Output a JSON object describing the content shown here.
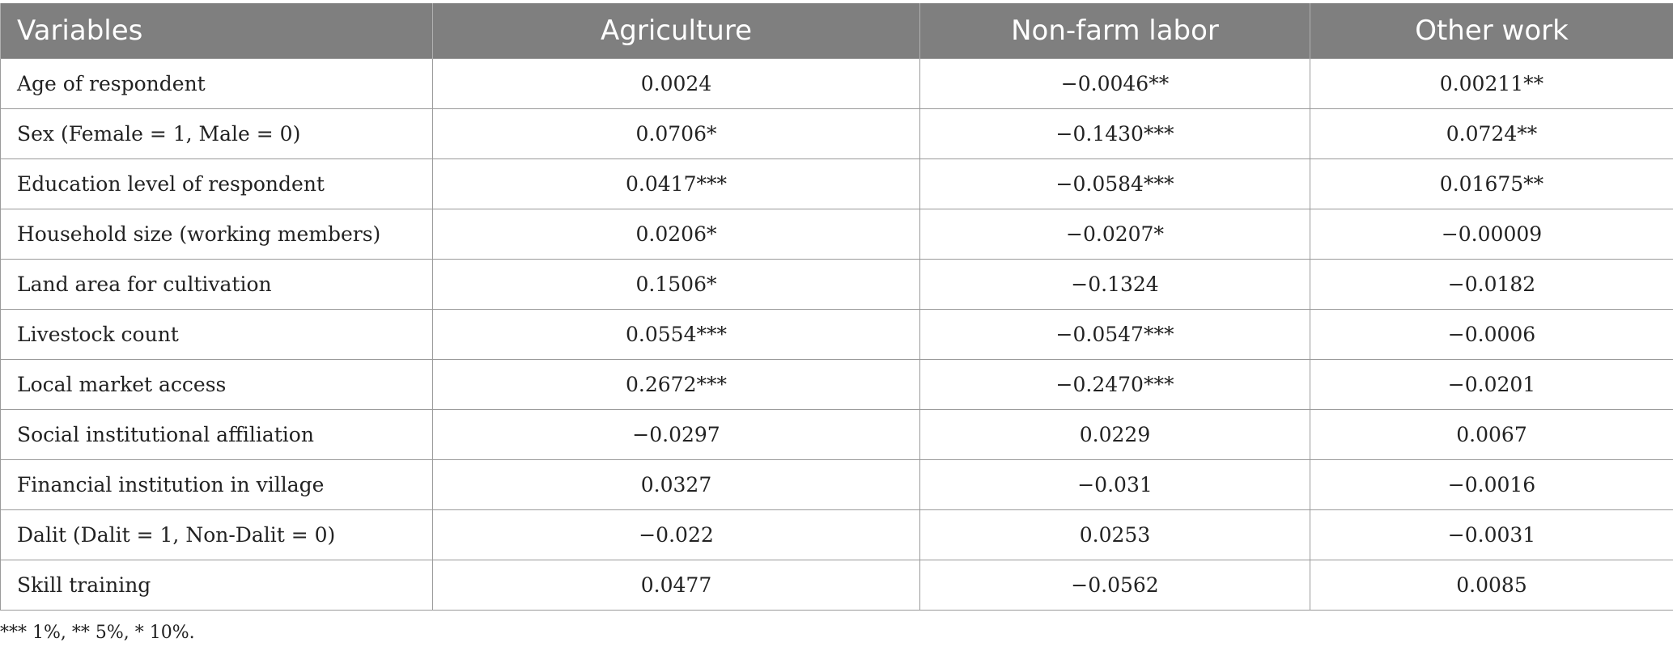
{
  "table": {
    "headers": [
      "Variables",
      "Agriculture",
      "Non-farm labor",
      "Other work"
    ],
    "rows": [
      [
        "Age of respondent",
        "0.0024",
        "−0.0046**",
        "0.00211**"
      ],
      [
        "Sex (Female = 1, Male = 0)",
        "0.0706*",
        "−0.1430***",
        "0.0724**"
      ],
      [
        "Education level of respondent",
        "0.0417***",
        "−0.0584***",
        "0.01675**"
      ],
      [
        "Household size (working members)",
        "0.0206*",
        "−0.0207*",
        "−0.00009"
      ],
      [
        "Land area for cultivation",
        "0.1506*",
        "−0.1324",
        "−0.0182"
      ],
      [
        "Livestock count",
        "0.0554***",
        "−0.0547***",
        "−0.0006"
      ],
      [
        "Local market access",
        "0.2672***",
        "−0.2470***",
        "−0.0201"
      ],
      [
        "Social institutional affiliation",
        "−0.0297",
        "0.0229",
        "0.0067"
      ],
      [
        "Financial institution in village",
        "0.0327",
        "−0.031",
        "−0.0016"
      ],
      [
        "Dalit (Dalit = 1, Non-Dalit = 0)",
        "−0.022",
        "0.0253",
        "−0.0031"
      ],
      [
        "Skill training",
        "0.0477",
        "−0.0562",
        "0.0085"
      ]
    ]
  },
  "footnote": "*** 1%, ** 5%, * 10%.",
  "colors": {
    "header_background": "#7f7f7f",
    "header_text": "#ffffff",
    "grid_line": "#9a9a9a"
  }
}
